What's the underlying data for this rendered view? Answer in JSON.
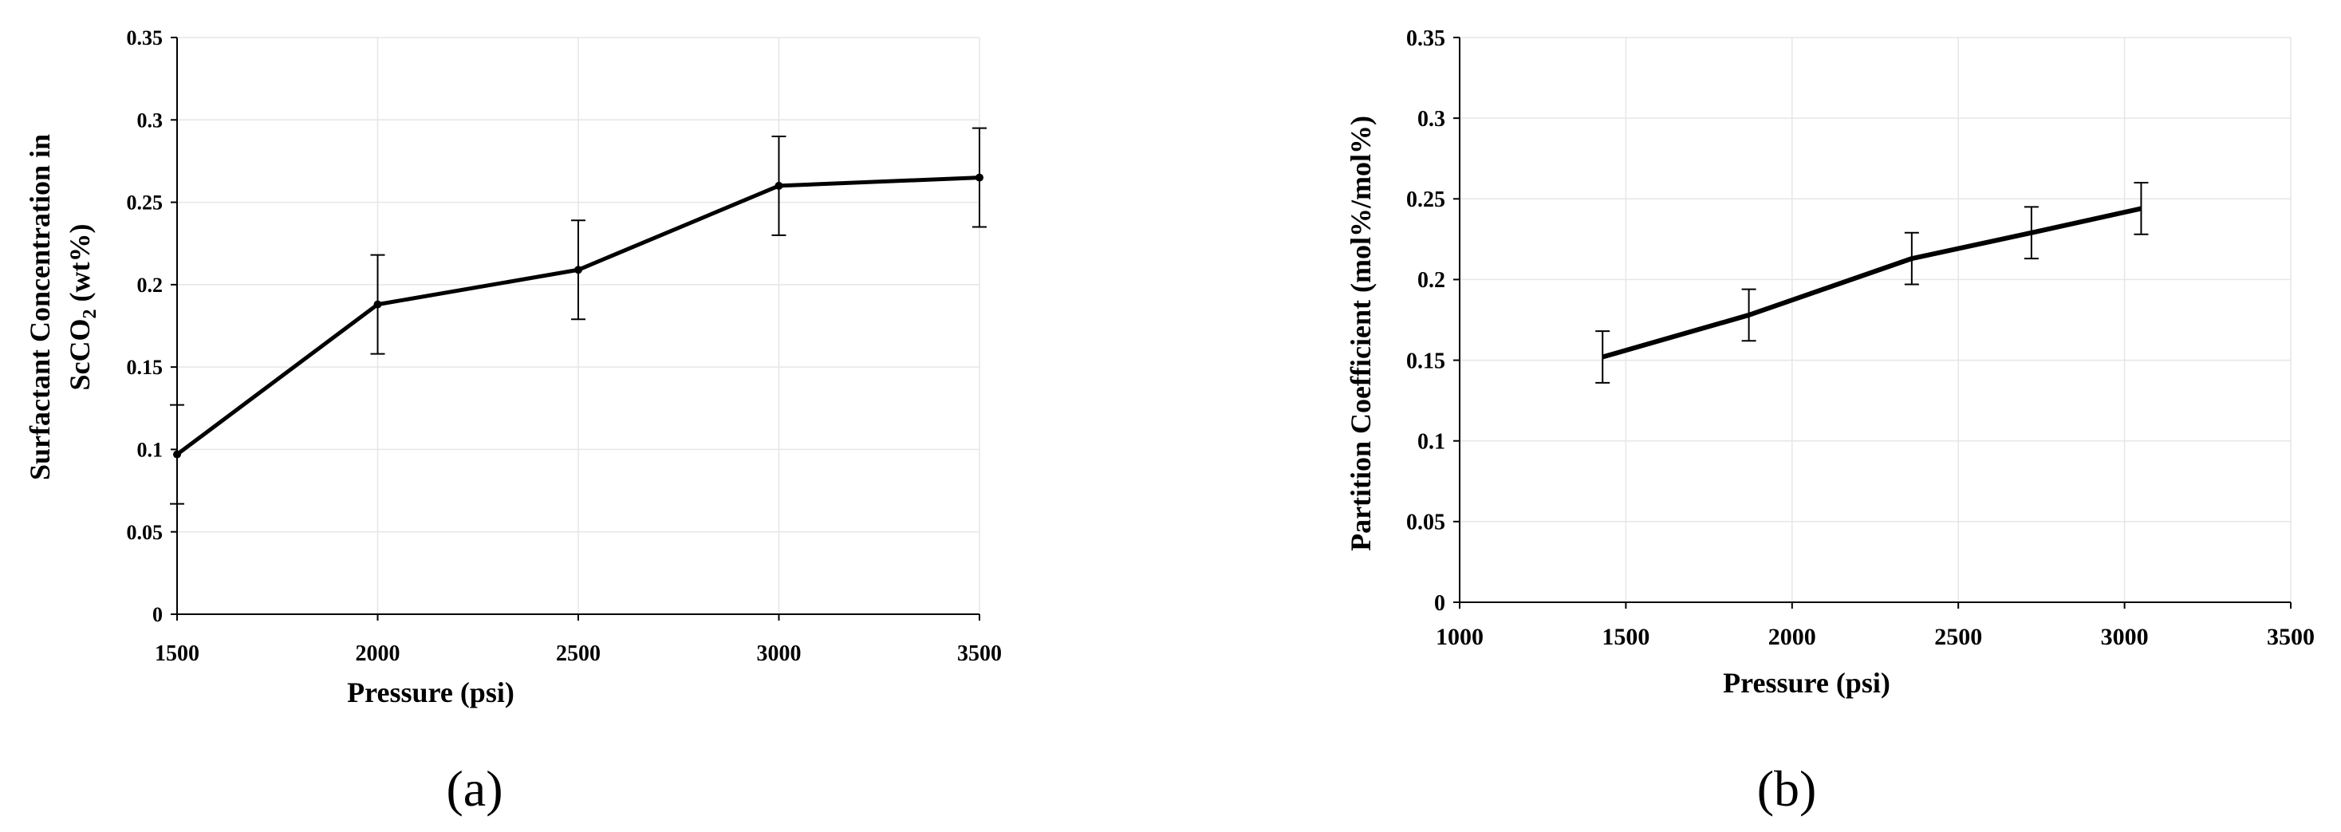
{
  "chart_data": [
    {
      "type": "line",
      "panel_label": "(a)",
      "xlabel": "Pressure (psi)",
      "ylabel_line1": "Surfactant Concentration in",
      "ylabel_line2_prefix": "ScCO",
      "ylabel_line2_sub": "2",
      "ylabel_line2_suffix": " (wt%)",
      "xlim": [
        1500,
        3500
      ],
      "ylim": [
        0,
        0.35
      ],
      "x_ticks": [
        1500,
        2000,
        2500,
        3000,
        3500
      ],
      "y_ticks": [
        0,
        0.05,
        0.1,
        0.15,
        0.2,
        0.25,
        0.3,
        0.35
      ],
      "x_tick_labels": [
        "1500",
        "2000",
        "2500",
        "3000",
        "3500"
      ],
      "y_tick_labels": [
        "0",
        "0.05",
        "0.1",
        "0.15",
        "0.2",
        "0.25",
        "0.3",
        "0.35"
      ],
      "grid": true,
      "series": [
        {
          "x": [
            1500,
            2000,
            2500,
            3000,
            3500
          ],
          "y": [
            0.097,
            0.188,
            0.209,
            0.26,
            0.265
          ],
          "error": [
            0.03,
            0.03,
            0.03,
            0.03,
            0.03
          ]
        }
      ]
    },
    {
      "type": "line",
      "panel_label": "(b)",
      "xlabel": "Pressure (psi)",
      "ylabel": "Partition Coefficient (mol%/mol%)",
      "xlim": [
        1000,
        3500
      ],
      "ylim": [
        0,
        0.35
      ],
      "x_ticks": [
        1000,
        1500,
        2000,
        2500,
        3000,
        3500
      ],
      "y_ticks": [
        0,
        0.05,
        0.1,
        0.15,
        0.2,
        0.25,
        0.3,
        0.35
      ],
      "x_tick_labels": [
        "1000",
        "1500",
        "2000",
        "2500",
        "3000",
        "3500"
      ],
      "y_tick_labels": [
        "0",
        "0.05",
        "0.1",
        "0.15",
        "0.2",
        "0.25",
        "0.3",
        "0.35"
      ],
      "grid": true,
      "series": [
        {
          "x": [
            1430,
            1870,
            2360,
            2720,
            3050
          ],
          "y": [
            0.152,
            0.178,
            0.213,
            0.229,
            0.244
          ],
          "error": [
            0.016,
            0.016,
            0.016,
            0.016,
            0.016
          ]
        }
      ]
    }
  ]
}
